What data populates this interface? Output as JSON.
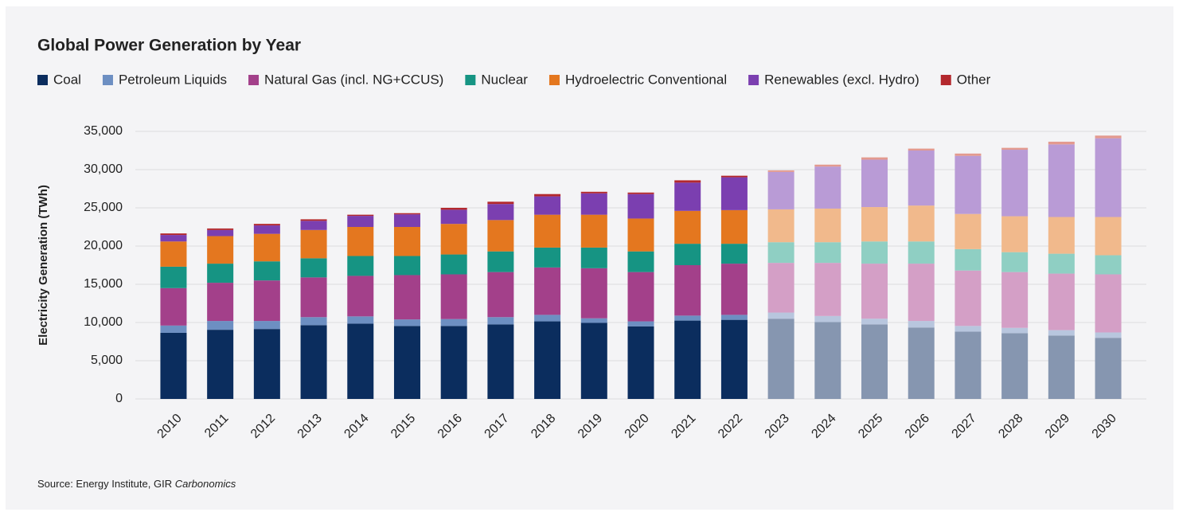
{
  "chart_data": {
    "type": "stacked_bar",
    "title": "Global Power Generation by Year",
    "y_label": "Electricity Generation (TWh)",
    "source": "Source: Energy Institute, GIR ",
    "source_italic": "Carbonomics",
    "categories": [
      "2010",
      "2011",
      "2012",
      "2013",
      "2014",
      "2015",
      "2016",
      "2017",
      "2018",
      "2019",
      "2020",
      "2021",
      "2022",
      "2023",
      "2024",
      "2025",
      "2026",
      "2027",
      "2028",
      "2029",
      "2030"
    ],
    "forecast_from": "2023",
    "ylim": [
      0,
      35000
    ],
    "yticks": [
      {
        "value": 0,
        "label": "0"
      },
      {
        "value": 5000,
        "label": "5,000"
      },
      {
        "value": 10000,
        "label": "10,000"
      },
      {
        "value": 15000,
        "label": "15,000"
      },
      {
        "value": 20000,
        "label": "20,000"
      },
      {
        "value": 25000,
        "label": "25,000"
      },
      {
        "value": 30000,
        "label": "30,000"
      },
      {
        "value": 35000,
        "label": "35,000"
      }
    ],
    "grid": true,
    "legend": "top-left",
    "series": [
      {
        "name": "Coal",
        "color": "#0b2d5e",
        "forecast_color": "#8696b0",
        "values": [
          8650,
          9050,
          9150,
          9650,
          9850,
          9550,
          9550,
          9750,
          10150,
          9950,
          9500,
          10250,
          10350,
          10500,
          10050,
          9750,
          9350,
          8800,
          8600,
          8300,
          8000
        ]
      },
      {
        "name": "Petroleum Liquids",
        "color": "#6d8fc2",
        "forecast_color": "#b8c6de",
        "values": [
          950,
          1150,
          1050,
          1050,
          950,
          850,
          900,
          950,
          850,
          600,
          650,
          650,
          650,
          800,
          800,
          750,
          850,
          750,
          700,
          700,
          700
        ]
      },
      {
        "name": "Natural Gas (incl. NG+CCUS)",
        "color": "#a3408a",
        "forecast_color": "#d49fc6",
        "values": [
          4900,
          5000,
          5300,
          5200,
          5300,
          5800,
          5850,
          5900,
          6200,
          6550,
          6450,
          6600,
          6700,
          6500,
          6950,
          7200,
          7500,
          7250,
          7300,
          7400,
          7600
        ]
      },
      {
        "name": "Nuclear",
        "color": "#169483",
        "forecast_color": "#8fcfc3",
        "values": [
          2800,
          2500,
          2500,
          2500,
          2600,
          2500,
          2600,
          2700,
          2600,
          2700,
          2700,
          2800,
          2600,
          2700,
          2700,
          2900,
          2900,
          2800,
          2600,
          2600,
          2500
        ]
      },
      {
        "name": "Hydroelectric Conventional",
        "color": "#e4771f",
        "forecast_color": "#f1b98c",
        "values": [
          3300,
          3600,
          3600,
          3700,
          3800,
          3800,
          4000,
          4100,
          4300,
          4300,
          4300,
          4300,
          4400,
          4300,
          4400,
          4500,
          4700,
          4600,
          4700,
          4800,
          5000
        ]
      },
      {
        "name": "Renewables (excl. Hydro)",
        "color": "#7b3fb0",
        "forecast_color": "#b99bd6",
        "values": [
          850,
          800,
          1100,
          1200,
          1450,
          1650,
          1850,
          2100,
          2400,
          2800,
          3200,
          3700,
          4300,
          4900,
          5500,
          6200,
          7200,
          7600,
          8700,
          9500,
          10300
        ]
      },
      {
        "name": "Other",
        "color": "#b3282d",
        "forecast_color": "#e39a8f",
        "values": [
          200,
          200,
          200,
          200,
          150,
          150,
          250,
          300,
          300,
          200,
          200,
          300,
          200,
          200,
          250,
          300,
          250,
          300,
          250,
          350,
          350
        ]
      }
    ]
  }
}
